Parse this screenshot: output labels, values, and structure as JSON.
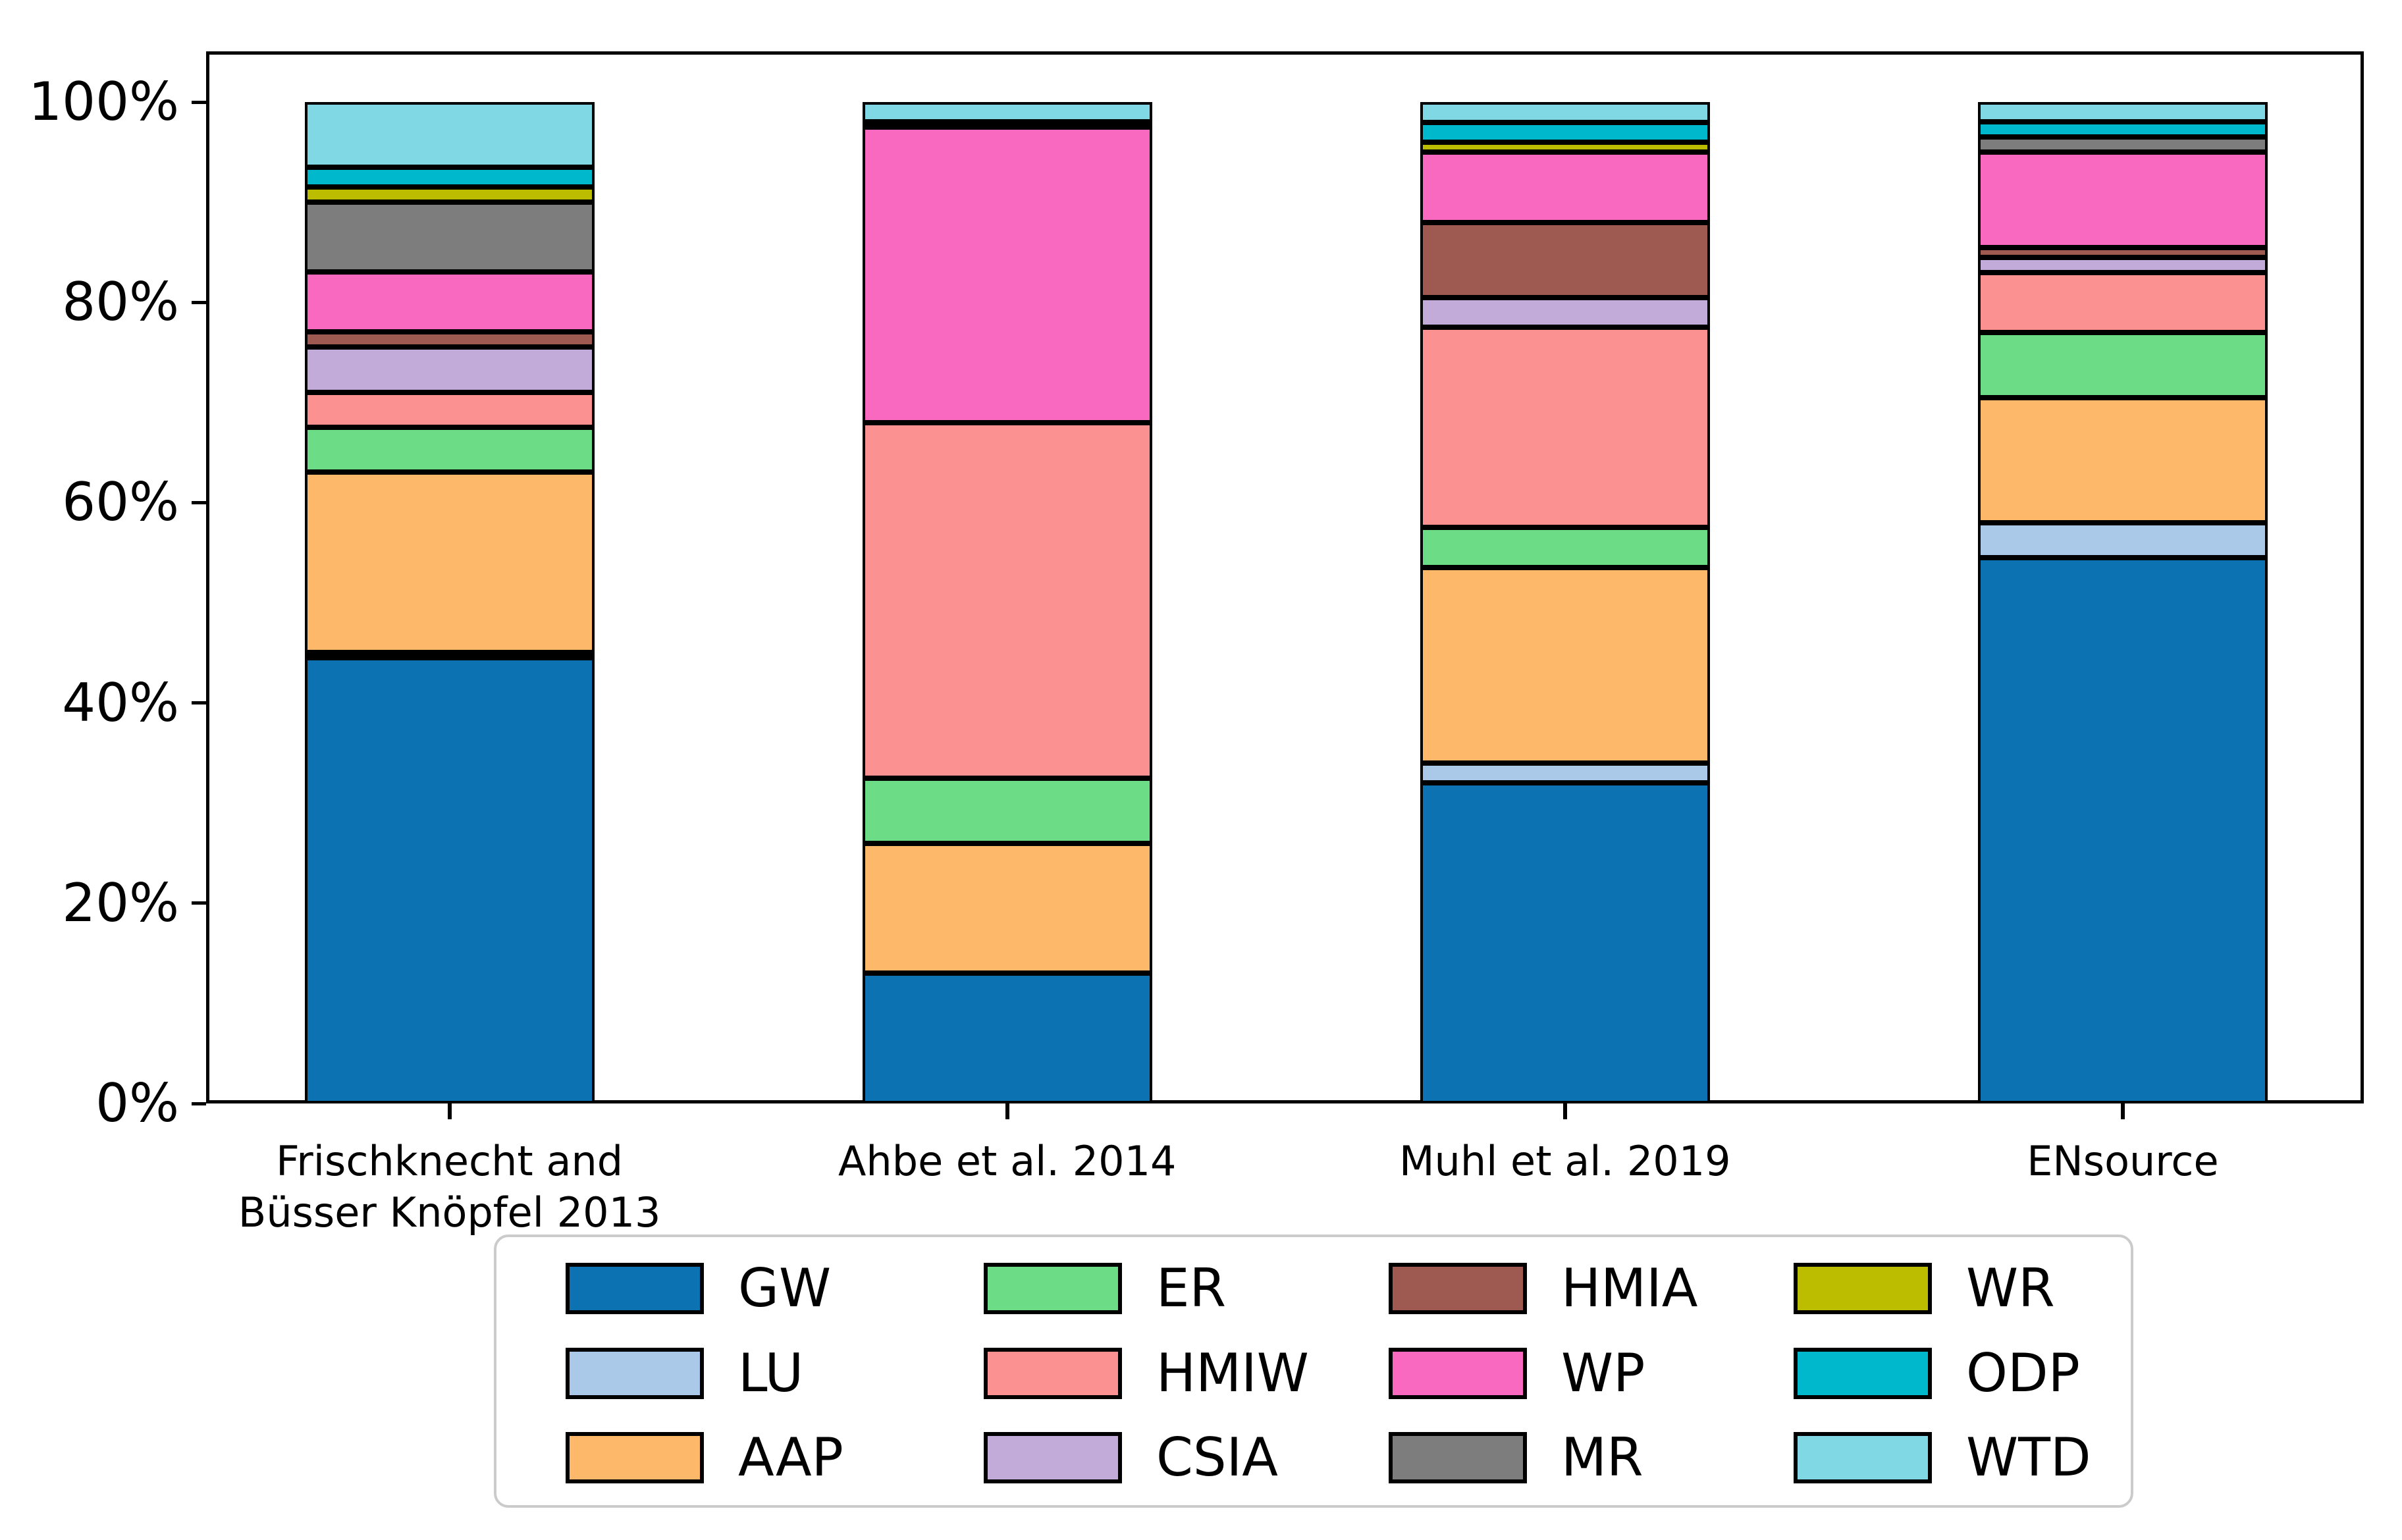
{
  "figure": {
    "background": "#ffffff",
    "axis_color": "#000000",
    "legend_border_color": "#cbcbcb"
  },
  "chart_data": {
    "type": "bar",
    "subtype": "stacked_percent",
    "title": "",
    "xlabel": "",
    "ylabel": "",
    "ylim": [
      0,
      100
    ],
    "grid": false,
    "legend_position": "bottom",
    "legend_columns": 4,
    "yticks": [
      {
        "label": "0%",
        "value": 0
      },
      {
        "label": "20%",
        "value": 20
      },
      {
        "label": "40%",
        "value": 40
      },
      {
        "label": "60%",
        "value": 60
      },
      {
        "label": "80%",
        "value": 80
      },
      {
        "label": "100%",
        "value": 100
      }
    ],
    "categories": [
      "Frischknecht and\nBüsser Knöpfel 2013",
      "Ahbe  et al. 2014",
      "Muhl et al. 2019",
      "ENsource"
    ],
    "series": [
      {
        "name": "GW",
        "color": "#0c72b2",
        "values": [
          44.5,
          13.0,
          32.0,
          54.5
        ]
      },
      {
        "name": "LU",
        "color": "#aac9e8",
        "values": [
          0.5,
          0.0,
          2.0,
          3.5
        ]
      },
      {
        "name": "AAP",
        "color": "#fdb86a",
        "values": [
          18.0,
          13.0,
          19.5,
          12.5
        ]
      },
      {
        "name": "ER",
        "color": "#6cdc87",
        "values": [
          4.5,
          6.5,
          4.0,
          6.5
        ]
      },
      {
        "name": "HMIW",
        "color": "#fc9191",
        "values": [
          3.5,
          35.5,
          20.0,
          6.0
        ]
      },
      {
        "name": "CSIA",
        "color": "#c2abd8",
        "values": [
          4.5,
          0.0,
          3.0,
          1.5
        ]
      },
      {
        "name": "HMIA",
        "color": "#9e5a50",
        "values": [
          1.5,
          0.0,
          7.5,
          1.0
        ]
      },
      {
        "name": "WP",
        "color": "#f969bf",
        "values": [
          6.0,
          29.5,
          7.0,
          9.5
        ]
      },
      {
        "name": "MR",
        "color": "#7d7d7d",
        "values": [
          7.0,
          0.0,
          0.0,
          1.5
        ]
      },
      {
        "name": "WR",
        "color": "#bcbd00",
        "values": [
          1.5,
          0.0,
          1.0,
          0.0
        ]
      },
      {
        "name": "ODP",
        "color": "#00b8cc",
        "values": [
          2.0,
          0.5,
          2.0,
          1.5
        ]
      },
      {
        "name": "WTD",
        "color": "#7fd8e4",
        "values": [
          6.5,
          2.0,
          2.0,
          2.0
        ]
      }
    ]
  }
}
